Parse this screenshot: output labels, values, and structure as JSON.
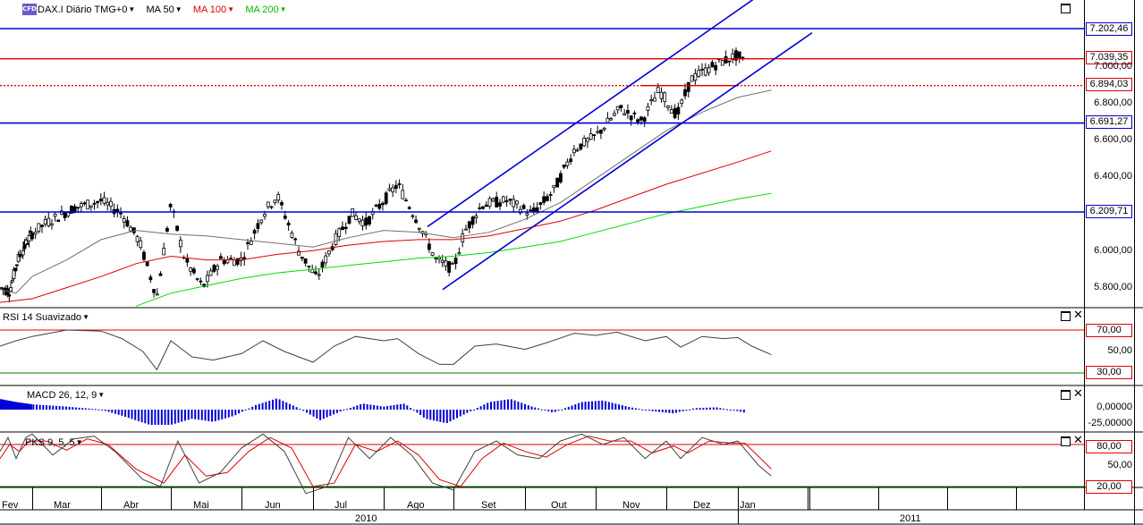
{
  "header": {
    "logo": "CFD",
    "symbol": "DAX.I Diário TMG+0",
    "ma50": "MA 50",
    "ma100": "MA 100",
    "ma200": "MA 200"
  },
  "subpanels": {
    "rsi_title": "RSI 14 Suavizado",
    "macd_title": "MACD 26, 12, 9",
    "pks_title": "PKS 9, 5, 5"
  },
  "price_boxes": {
    "b1": "7.202,46",
    "b2": "7.039,35",
    "b3": "6.894,03",
    "b4": "6.691,27",
    "b5": "6.209,71"
  },
  "rsi_boxes": {
    "upper": "70,00",
    "lower": "30,00"
  },
  "pks_boxes": {
    "upper": "80,00",
    "lower": "20,00"
  },
  "colors": {
    "blue": "#0000d8",
    "red": "#e00000",
    "green": "#00dd00",
    "ma50": "#707070"
  },
  "chart_data": {
    "type": "candlestick",
    "title": "DAX.I Diário TMG+0",
    "x_months": [
      "Fev",
      "Mar",
      "Abr",
      "Mai",
      "Jun",
      "Jul",
      "Ago",
      "Set",
      "Out",
      "Nov",
      "Dez",
      "Jan"
    ],
    "x_years": [
      "2010",
      "2011"
    ],
    "price_ticks": [
      "7.000,00",
      "6.800,00",
      "6.600,00",
      "6.400,00",
      "6.000,00",
      "5.800,00"
    ],
    "rsi_ticks": [
      "50,00"
    ],
    "macd_ticks": [
      "0,00000",
      "-25,00000"
    ],
    "pks_ticks": [
      "50,00"
    ],
    "horizontal_levels": [
      {
        "value": 7202.46,
        "color": "blue"
      },
      {
        "value": 7039.35,
        "color": "red"
      },
      {
        "value": 6894.03,
        "color": "red",
        "style": "dotted"
      },
      {
        "value": 6691.27,
        "color": "blue"
      },
      {
        "value": 6209.71,
        "color": "blue"
      }
    ],
    "channel": {
      "upper": [
        {
          "date": "Ago",
          "value": 6120
        },
        {
          "date": "Dez",
          "value": 7300
        }
      ],
      "lower": [
        {
          "date": "Ago",
          "value": 5790
        },
        {
          "date": "Jan",
          "value": 7150
        }
      ]
    },
    "close_path": [
      {
        "m": 0.0,
        "v": 5800
      },
      {
        "m": 0.3,
        "v": 5780
      },
      {
        "m": 0.55,
        "v": 5950
      },
      {
        "m": 0.85,
        "v": 6050
      },
      {
        "m": 1.2,
        "v": 6150
      },
      {
        "m": 1.6,
        "v": 6230
      },
      {
        "m": 2.0,
        "v": 6270
      },
      {
        "m": 2.3,
        "v": 6200
      },
      {
        "m": 2.55,
        "v": 6050
      },
      {
        "m": 2.8,
        "v": 5750
      },
      {
        "m": 3.0,
        "v": 6250
      },
      {
        "m": 3.2,
        "v": 5950
      },
      {
        "m": 3.45,
        "v": 5800
      },
      {
        "m": 3.7,
        "v": 5950
      },
      {
        "m": 4.0,
        "v": 5950
      },
      {
        "m": 4.3,
        "v": 6200
      },
      {
        "m": 4.5,
        "v": 6300
      },
      {
        "m": 4.8,
        "v": 6000
      },
      {
        "m": 5.05,
        "v": 5850
      },
      {
        "m": 5.3,
        "v": 6050
      },
      {
        "m": 5.55,
        "v": 6200
      },
      {
        "m": 5.75,
        "v": 6150
      },
      {
        "m": 6.0,
        "v": 6270
      },
      {
        "m": 6.2,
        "v": 6360
      },
      {
        "m": 6.5,
        "v": 6150
      },
      {
        "m": 6.75,
        "v": 5950
      },
      {
        "m": 7.0,
        "v": 5900
      },
      {
        "m": 7.15,
        "v": 6100
      },
      {
        "m": 7.4,
        "v": 6250
      },
      {
        "m": 7.75,
        "v": 6270
      },
      {
        "m": 8.1,
        "v": 6200
      },
      {
        "m": 8.4,
        "v": 6320
      },
      {
        "m": 8.7,
        "v": 6550
      },
      {
        "m": 9.0,
        "v": 6620
      },
      {
        "m": 9.35,
        "v": 6770
      },
      {
        "m": 9.65,
        "v": 6700
      },
      {
        "m": 9.9,
        "v": 6870
      },
      {
        "m": 10.15,
        "v": 6730
      },
      {
        "m": 10.35,
        "v": 6930
      },
      {
        "m": 10.7,
        "v": 7010
      },
      {
        "m": 11.0,
        "v": 7060
      },
      {
        "m": 11.15,
        "v": 6980
      },
      {
        "m": 11.35,
        "v": 6930
      },
      {
        "m": 11.48,
        "v": 6894
      }
    ],
    "ma50_path": [
      {
        "m": 0.0,
        "v": 5790
      },
      {
        "m": 0.5,
        "v": 5770
      },
      {
        "m": 1.0,
        "v": 5860
      },
      {
        "m": 1.5,
        "v": 5950
      },
      {
        "m": 2.0,
        "v": 6060
      },
      {
        "m": 2.5,
        "v": 6110
      },
      {
        "m": 3.0,
        "v": 6090
      },
      {
        "m": 3.5,
        "v": 6080
      },
      {
        "m": 4.0,
        "v": 6060
      },
      {
        "m": 4.5,
        "v": 6040
      },
      {
        "m": 5.0,
        "v": 6020
      },
      {
        "m": 5.5,
        "v": 6070
      },
      {
        "m": 6.0,
        "v": 6110
      },
      {
        "m": 6.5,
        "v": 6100
      },
      {
        "m": 7.0,
        "v": 6070
      },
      {
        "m": 7.5,
        "v": 6100
      },
      {
        "m": 8.0,
        "v": 6170
      },
      {
        "m": 8.5,
        "v": 6260
      },
      {
        "m": 9.0,
        "v": 6390
      },
      {
        "m": 9.5,
        "v": 6520
      },
      {
        "m": 10.0,
        "v": 6650
      },
      {
        "m": 10.5,
        "v": 6750
      },
      {
        "m": 11.0,
        "v": 6830
      },
      {
        "m": 11.48,
        "v": 6870
      }
    ],
    "ma100_path": [
      {
        "m": 0.0,
        "v": 5720
      },
      {
        "m": 1.0,
        "v": 5740
      },
      {
        "m": 1.5,
        "v": 5800
      },
      {
        "m": 2.0,
        "v": 5860
      },
      {
        "m": 2.5,
        "v": 5930
      },
      {
        "m": 3.0,
        "v": 5970
      },
      {
        "m": 3.5,
        "v": 5950
      },
      {
        "m": 4.0,
        "v": 5950
      },
      {
        "m": 4.5,
        "v": 5980
      },
      {
        "m": 5.0,
        "v": 6000
      },
      {
        "m": 5.5,
        "v": 6030
      },
      {
        "m": 6.0,
        "v": 6050
      },
      {
        "m": 6.5,
        "v": 6060
      },
      {
        "m": 7.0,
        "v": 6060
      },
      {
        "m": 7.5,
        "v": 6080
      },
      {
        "m": 8.0,
        "v": 6120
      },
      {
        "m": 8.5,
        "v": 6160
      },
      {
        "m": 9.0,
        "v": 6220
      },
      {
        "m": 9.5,
        "v": 6290
      },
      {
        "m": 10.0,
        "v": 6360
      },
      {
        "m": 10.5,
        "v": 6420
      },
      {
        "m": 11.0,
        "v": 6480
      },
      {
        "m": 11.48,
        "v": 6540
      }
    ],
    "ma200_path": [
      {
        "m": 2.5,
        "v": 5700
      },
      {
        "m": 3.0,
        "v": 5770
      },
      {
        "m": 3.5,
        "v": 5810
      },
      {
        "m": 4.0,
        "v": 5850
      },
      {
        "m": 4.5,
        "v": 5880
      },
      {
        "m": 5.0,
        "v": 5900
      },
      {
        "m": 5.5,
        "v": 5920
      },
      {
        "m": 6.0,
        "v": 5940
      },
      {
        "m": 6.5,
        "v": 5960
      },
      {
        "m": 7.0,
        "v": 5970
      },
      {
        "m": 7.5,
        "v": 5990
      },
      {
        "m": 8.0,
        "v": 6020
      },
      {
        "m": 8.5,
        "v": 6050
      },
      {
        "m": 9.0,
        "v": 6100
      },
      {
        "m": 9.5,
        "v": 6150
      },
      {
        "m": 10.0,
        "v": 6200
      },
      {
        "m": 10.5,
        "v": 6240
      },
      {
        "m": 11.0,
        "v": 6280
      },
      {
        "m": 11.48,
        "v": 6310
      }
    ],
    "rsi_path": [
      {
        "m": 0.0,
        "v": 55
      },
      {
        "m": 0.5,
        "v": 60
      },
      {
        "m": 1.0,
        "v": 64
      },
      {
        "m": 1.5,
        "v": 70
      },
      {
        "m": 2.0,
        "v": 69
      },
      {
        "m": 2.3,
        "v": 62
      },
      {
        "m": 2.6,
        "v": 50
      },
      {
        "m": 2.8,
        "v": 33
      },
      {
        "m": 3.0,
        "v": 60
      },
      {
        "m": 3.3,
        "v": 45
      },
      {
        "m": 3.6,
        "v": 42
      },
      {
        "m": 4.0,
        "v": 48
      },
      {
        "m": 4.3,
        "v": 60
      },
      {
        "m": 4.6,
        "v": 50
      },
      {
        "m": 5.0,
        "v": 40
      },
      {
        "m": 5.3,
        "v": 55
      },
      {
        "m": 5.6,
        "v": 64
      },
      {
        "m": 6.0,
        "v": 60
      },
      {
        "m": 6.2,
        "v": 62
      },
      {
        "m": 6.5,
        "v": 48
      },
      {
        "m": 6.8,
        "v": 38
      },
      {
        "m": 7.0,
        "v": 38
      },
      {
        "m": 7.3,
        "v": 55
      },
      {
        "m": 7.6,
        "v": 57
      },
      {
        "m": 8.0,
        "v": 52
      },
      {
        "m": 8.3,
        "v": 58
      },
      {
        "m": 8.7,
        "v": 67
      },
      {
        "m": 9.0,
        "v": 65
      },
      {
        "m": 9.3,
        "v": 68
      },
      {
        "m": 9.7,
        "v": 60
      },
      {
        "m": 10.0,
        "v": 64
      },
      {
        "m": 10.2,
        "v": 54
      },
      {
        "m": 10.5,
        "v": 64
      },
      {
        "m": 10.8,
        "v": 62
      },
      {
        "m": 11.0,
        "v": 63
      },
      {
        "m": 11.2,
        "v": 55
      },
      {
        "m": 11.48,
        "v": 47
      }
    ],
    "macd_path": [
      {
        "m": 0.0,
        "v": 14
      },
      {
        "m": 0.5,
        "v": 10
      },
      {
        "m": 1.0,
        "v": 7
      },
      {
        "m": 1.5,
        "v": 4
      },
      {
        "m": 2.0,
        "v": 0
      },
      {
        "m": 2.3,
        "v": -8
      },
      {
        "m": 2.7,
        "v": -20
      },
      {
        "m": 3.0,
        "v": -20
      },
      {
        "m": 3.3,
        "v": -12
      },
      {
        "m": 3.6,
        "v": -16
      },
      {
        "m": 3.9,
        "v": -8
      },
      {
        "m": 4.2,
        "v": 6
      },
      {
        "m": 4.5,
        "v": 15
      },
      {
        "m": 4.8,
        "v": 2
      },
      {
        "m": 5.1,
        "v": -14
      },
      {
        "m": 5.4,
        "v": -2
      },
      {
        "m": 5.7,
        "v": 8
      },
      {
        "m": 6.0,
        "v": 4
      },
      {
        "m": 6.3,
        "v": 8
      },
      {
        "m": 6.6,
        "v": -12
      },
      {
        "m": 6.9,
        "v": -18
      },
      {
        "m": 7.2,
        "v": -4
      },
      {
        "m": 7.5,
        "v": 10
      },
      {
        "m": 7.8,
        "v": 14
      },
      {
        "m": 8.1,
        "v": 4
      },
      {
        "m": 8.4,
        "v": -4
      },
      {
        "m": 8.8,
        "v": 10
      },
      {
        "m": 9.1,
        "v": 12
      },
      {
        "m": 9.5,
        "v": 3
      },
      {
        "m": 9.8,
        "v": -2
      },
      {
        "m": 10.1,
        "v": -5
      },
      {
        "m": 10.4,
        "v": 2
      },
      {
        "m": 10.7,
        "v": 3
      },
      {
        "m": 11.0,
        "v": -2
      },
      {
        "m": 11.48,
        "v": -12
      }
    ],
    "pks_k_path": [
      {
        "m": 0.0,
        "v": 70
      },
      {
        "m": 0.25,
        "v": 90
      },
      {
        "m": 0.5,
        "v": 60
      },
      {
        "m": 0.8,
        "v": 90
      },
      {
        "m": 1.0,
        "v": 95
      },
      {
        "m": 1.3,
        "v": 65
      },
      {
        "m": 1.6,
        "v": 88
      },
      {
        "m": 1.9,
        "v": 92
      },
      {
        "m": 2.2,
        "v": 70
      },
      {
        "m": 2.6,
        "v": 30
      },
      {
        "m": 2.85,
        "v": 20
      },
      {
        "m": 3.1,
        "v": 85
      },
      {
        "m": 3.4,
        "v": 25
      },
      {
        "m": 3.7,
        "v": 40
      },
      {
        "m": 4.0,
        "v": 75
      },
      {
        "m": 4.3,
        "v": 95
      },
      {
        "m": 4.6,
        "v": 70
      },
      {
        "m": 4.9,
        "v": 10
      },
      {
        "m": 5.2,
        "v": 20
      },
      {
        "m": 5.5,
        "v": 90
      },
      {
        "m": 5.8,
        "v": 60
      },
      {
        "m": 6.1,
        "v": 90
      },
      {
        "m": 6.4,
        "v": 65
      },
      {
        "m": 6.7,
        "v": 25
      },
      {
        "m": 7.0,
        "v": 15
      },
      {
        "m": 7.3,
        "v": 70
      },
      {
        "m": 7.6,
        "v": 85
      },
      {
        "m": 7.9,
        "v": 65
      },
      {
        "m": 8.2,
        "v": 60
      },
      {
        "m": 8.5,
        "v": 85
      },
      {
        "m": 8.8,
        "v": 95
      },
      {
        "m": 9.1,
        "v": 80
      },
      {
        "m": 9.4,
        "v": 90
      },
      {
        "m": 9.7,
        "v": 60
      },
      {
        "m": 10.0,
        "v": 85
      },
      {
        "m": 10.2,
        "v": 60
      },
      {
        "m": 10.5,
        "v": 90
      },
      {
        "m": 10.8,
        "v": 80
      },
      {
        "m": 11.0,
        "v": 85
      },
      {
        "m": 11.3,
        "v": 50
      },
      {
        "m": 11.48,
        "v": 35
      }
    ],
    "pks_d_path": [
      {
        "m": 0.0,
        "v": 60
      },
      {
        "m": 0.3,
        "v": 80
      },
      {
        "m": 0.6,
        "v": 70
      },
      {
        "m": 0.9,
        "v": 85
      },
      {
        "m": 1.2,
        "v": 85
      },
      {
        "m": 1.5,
        "v": 72
      },
      {
        "m": 1.8,
        "v": 88
      },
      {
        "m": 2.1,
        "v": 80
      },
      {
        "m": 2.5,
        "v": 45
      },
      {
        "m": 2.9,
        "v": 25
      },
      {
        "m": 3.2,
        "v": 65
      },
      {
        "m": 3.5,
        "v": 35
      },
      {
        "m": 3.8,
        "v": 40
      },
      {
        "m": 4.1,
        "v": 70
      },
      {
        "m": 4.4,
        "v": 90
      },
      {
        "m": 4.7,
        "v": 75
      },
      {
        "m": 5.0,
        "v": 20
      },
      {
        "m": 5.3,
        "v": 25
      },
      {
        "m": 5.6,
        "v": 80
      },
      {
        "m": 5.9,
        "v": 70
      },
      {
        "m": 6.2,
        "v": 85
      },
      {
        "m": 6.5,
        "v": 65
      },
      {
        "m": 6.8,
        "v": 30
      },
      {
        "m": 7.1,
        "v": 20
      },
      {
        "m": 7.4,
        "v": 60
      },
      {
        "m": 7.7,
        "v": 82
      },
      {
        "m": 8.0,
        "v": 70
      },
      {
        "m": 8.3,
        "v": 62
      },
      {
        "m": 8.6,
        "v": 80
      },
      {
        "m": 8.9,
        "v": 92
      },
      {
        "m": 9.2,
        "v": 85
      },
      {
        "m": 9.5,
        "v": 85
      },
      {
        "m": 9.8,
        "v": 68
      },
      {
        "m": 10.1,
        "v": 78
      },
      {
        "m": 10.3,
        "v": 68
      },
      {
        "m": 10.6,
        "v": 85
      },
      {
        "m": 10.9,
        "v": 82
      },
      {
        "m": 11.1,
        "v": 82
      },
      {
        "m": 11.48,
        "v": 45
      }
    ]
  }
}
